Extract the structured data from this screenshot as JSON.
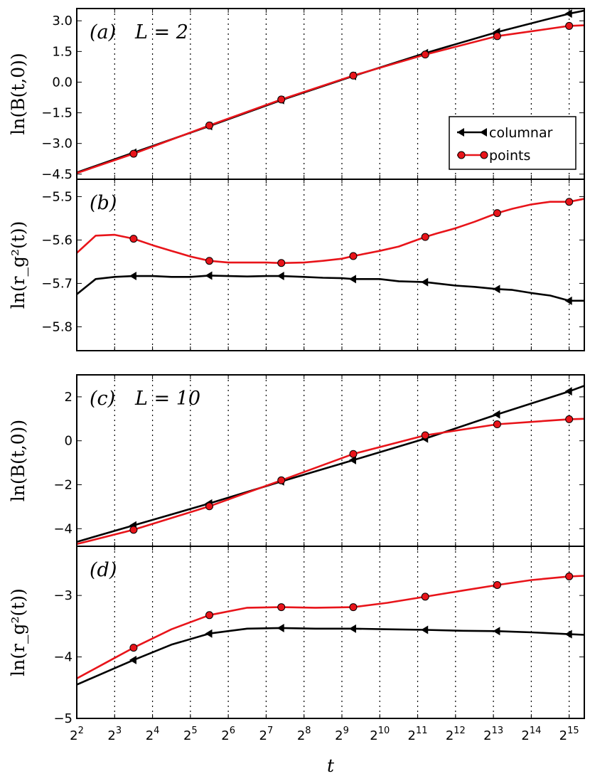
{
  "x_axis": {
    "label": "t",
    "tick_base": "2",
    "tick_exponents": [
      "2",
      "3",
      "4",
      "5",
      "6",
      "7",
      "8",
      "9",
      "10",
      "11",
      "12",
      "13",
      "14",
      "15"
    ],
    "range_log2": [
      2,
      15.4
    ]
  },
  "legend": {
    "columnar": "columnar",
    "points": "points"
  },
  "colors": {
    "columnar": "#000000",
    "points": "#e8141a"
  },
  "chart_data": [
    {
      "id": "a",
      "type": "line",
      "panel_label": "(a)",
      "annotation": "L = 2",
      "ylabel": "ln(B(t,0))",
      "ylim": [
        -4.75,
        3.6
      ],
      "yticks": [
        -4.5,
        -3.0,
        -1.5,
        0.0,
        1.5,
        3.0
      ],
      "ytick_labels": [
        "−4.5",
        "−3.0",
        "−1.5",
        "0.0",
        "1.5",
        "3.0"
      ],
      "series": [
        {
          "name": "columnar",
          "x_log2": [
            2,
            3.5,
            5.5,
            7.4,
            9.3,
            11.2,
            13.1,
            15.0,
            15.4
          ],
          "values": [
            -4.42,
            -3.45,
            -2.15,
            -0.88,
            0.3,
            1.42,
            2.45,
            3.35,
            3.5
          ]
        },
        {
          "name": "points",
          "x_log2": [
            2,
            3.5,
            5.5,
            7.4,
            9.3,
            11.2,
            13.1,
            15.0,
            15.4
          ],
          "values": [
            -4.45,
            -3.5,
            -2.12,
            -0.85,
            0.32,
            1.35,
            2.25,
            2.75,
            2.78
          ]
        }
      ]
    },
    {
      "id": "b",
      "type": "line",
      "panel_label": "(b)",
      "annotation": "",
      "ylabel": "ln(r_g²(t))",
      "ylim": [
        -5.855,
        -5.46
      ],
      "yticks": [
        -5.8,
        -5.7,
        -5.6,
        -5.5
      ],
      "ytick_labels": [
        "−5.8",
        "−5.7",
        "−5.6",
        "−5.5"
      ],
      "series": [
        {
          "name": "columnar",
          "x_log2": [
            2,
            2.5,
            3.0,
            3.5,
            4.0,
            4.5,
            5.0,
            5.5,
            6.0,
            6.5,
            7.0,
            7.4,
            8.0,
            8.5,
            9.0,
            9.3,
            10.0,
            10.5,
            11.2,
            11.5,
            12.0,
            12.5,
            13.1,
            13.5,
            14.0,
            14.5,
            15.0,
            15.4
          ],
          "values": [
            -5.725,
            -5.69,
            -5.685,
            -5.683,
            -5.683,
            -5.685,
            -5.685,
            -5.682,
            -5.683,
            -5.684,
            -5.683,
            -5.683,
            -5.685,
            -5.687,
            -5.688,
            -5.69,
            -5.69,
            -5.695,
            -5.697,
            -5.7,
            -5.705,
            -5.708,
            -5.713,
            -5.715,
            -5.722,
            -5.728,
            -5.74,
            -5.74
          ]
        },
        {
          "name": "points",
          "x_log2": [
            2,
            2.5,
            3.0,
            3.5,
            4.0,
            4.5,
            5.0,
            5.5,
            6.0,
            6.5,
            7.0,
            7.4,
            8.0,
            8.5,
            9.0,
            9.3,
            10.0,
            10.5,
            11.2,
            11.5,
            12.0,
            12.5,
            13.1,
            13.5,
            14.0,
            14.5,
            15.0,
            15.4
          ],
          "values": [
            -5.63,
            -5.59,
            -5.588,
            -5.597,
            -5.612,
            -5.625,
            -5.638,
            -5.648,
            -5.652,
            -5.652,
            -5.652,
            -5.653,
            -5.652,
            -5.648,
            -5.643,
            -5.637,
            -5.625,
            -5.615,
            -5.593,
            -5.585,
            -5.573,
            -5.558,
            -5.538,
            -5.528,
            -5.518,
            -5.512,
            -5.512,
            -5.505
          ]
        }
      ]
    },
    {
      "id": "c",
      "type": "line",
      "panel_label": "(c)",
      "annotation": "L = 10",
      "ylabel": "ln(B(t,0))",
      "ylim": [
        -4.8,
        3.0
      ],
      "yticks": [
        -4,
        -2,
        0,
        2
      ],
      "ytick_labels": [
        "−4",
        "−2",
        "0",
        "2"
      ],
      "series": [
        {
          "name": "columnar",
          "x_log2": [
            2,
            3.5,
            5.5,
            7.4,
            9.3,
            11.2,
            13.1,
            15.0,
            15.4
          ],
          "values": [
            -4.6,
            -3.85,
            -2.85,
            -1.85,
            -0.88,
            0.1,
            1.2,
            2.25,
            2.5
          ]
        },
        {
          "name": "points",
          "x_log2": [
            2,
            3.5,
            5.5,
            7.4,
            9.3,
            11.2,
            13.1,
            15.0,
            15.4
          ],
          "values": [
            -4.7,
            -4.05,
            -2.98,
            -1.8,
            -0.6,
            0.25,
            0.75,
            0.98,
            1.0
          ]
        }
      ]
    },
    {
      "id": "d",
      "type": "line",
      "panel_label": "(d)",
      "annotation": "",
      "ylabel": "ln(r_g²(t))",
      "ylim": [
        -5.0,
        -2.2
      ],
      "yticks": [
        -5,
        -4,
        -3
      ],
      "ytick_labels": [
        "−5",
        "−4",
        "−3"
      ],
      "series": [
        {
          "name": "columnar",
          "x_log2": [
            2,
            2.75,
            3.5,
            4.5,
            5.5,
            6.5,
            7.4,
            8.3,
            9.3,
            10.2,
            11.2,
            12.2,
            13.1,
            14.0,
            15.0,
            15.4
          ],
          "values": [
            -4.45,
            -4.25,
            -4.05,
            -3.8,
            -3.62,
            -3.54,
            -3.53,
            -3.54,
            -3.54,
            -3.55,
            -3.56,
            -3.575,
            -3.58,
            -3.6,
            -3.63,
            -3.64
          ]
        },
        {
          "name": "points",
          "x_log2": [
            2,
            2.75,
            3.5,
            4.5,
            5.5,
            6.5,
            7.4,
            8.3,
            9.3,
            10.2,
            11.2,
            12.2,
            13.1,
            14.0,
            15.0,
            15.4
          ],
          "values": [
            -4.35,
            -4.1,
            -3.85,
            -3.55,
            -3.32,
            -3.2,
            -3.19,
            -3.2,
            -3.19,
            -3.12,
            -3.02,
            -2.92,
            -2.83,
            -2.75,
            -2.69,
            -2.68
          ]
        }
      ]
    }
  ]
}
